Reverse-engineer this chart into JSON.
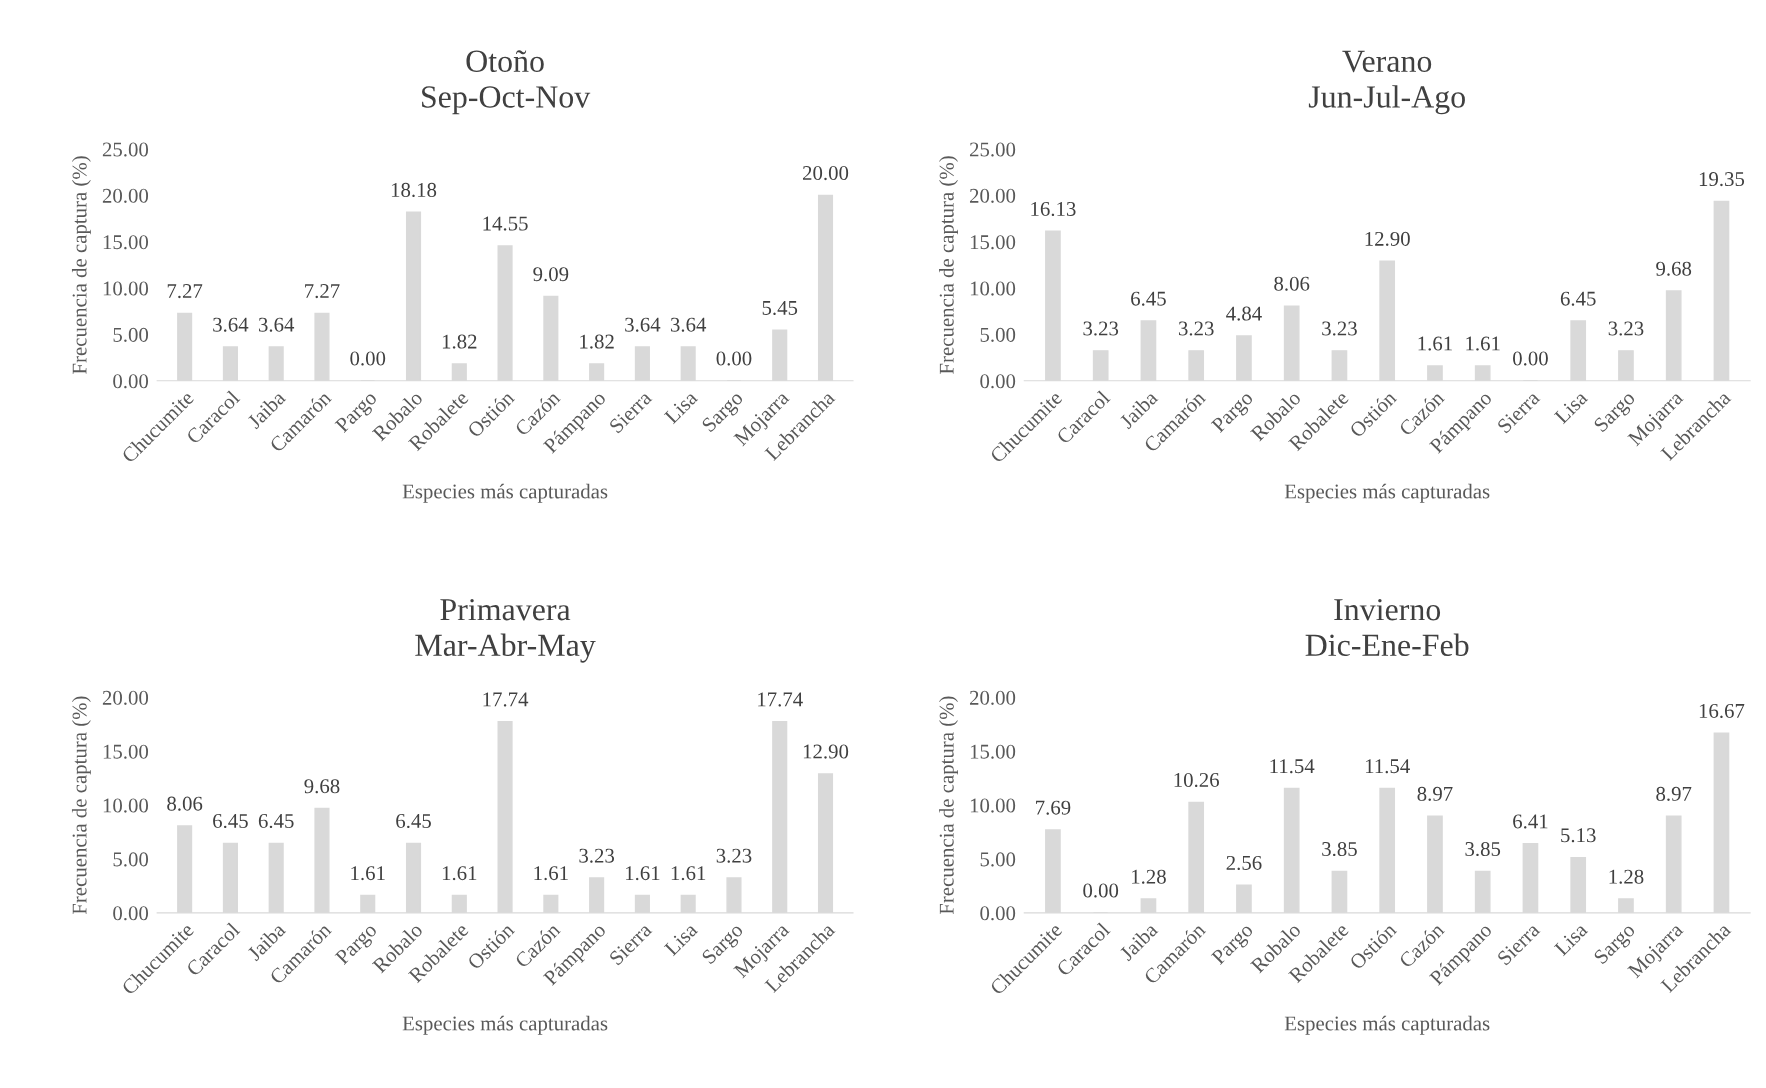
{
  "chart_data": [
    {
      "type": "bar",
      "title": "Otoño",
      "subtitle": "Sep-Oct-Nov",
      "xlabel": "Especies más capturadas",
      "ylabel": "Frecuencia de captura (%)",
      "categories": [
        "Chucumite",
        "Caracol",
        "Jaiba",
        "Camarón",
        "Pargo",
        "Robalo",
        "Robalete",
        "Ostión",
        "Cazón",
        "Pámpano",
        "Sierra",
        "Lisa",
        "Sargo",
        "Mojarra",
        "Lebrancha"
      ],
      "color": "#d9d9d9",
      "values": [
        7.27,
        3.64,
        3.64,
        7.27,
        0.0,
        18.18,
        1.82,
        14.55,
        9.09,
        1.82,
        3.64,
        3.64,
        0.0,
        5.45,
        20.0
      ],
      "value_labels": [
        "7.27",
        "3.64",
        "3.64",
        "7.27",
        "0.00",
        "18.18",
        "1.82",
        "14.55",
        "9.09",
        "1.82",
        "3.64",
        "3.64",
        "0.00",
        "5.45",
        "20.00"
      ],
      "ylim": [
        0,
        25
      ],
      "yticks": [
        {
          "value": 0,
          "label": "0.00"
        },
        {
          "value": 5,
          "label": "5.00"
        },
        {
          "value": 10,
          "label": "10.00"
        },
        {
          "value": 15,
          "label": "15.00"
        },
        {
          "value": 20,
          "label": "20.00"
        },
        {
          "value": 25,
          "label": "25.00"
        }
      ],
      "grid": false,
      "legend": false
    },
    {
      "type": "bar",
      "title": "Verano",
      "subtitle": "Jun-Jul-Ago",
      "xlabel": "Especies más capturadas",
      "ylabel": "Frecuencia de captura (%)",
      "categories": [
        "Chucumite",
        "Caracol",
        "Jaiba",
        "Camarón",
        "Pargo",
        "Robalo",
        "Robalete",
        "Ostión",
        "Cazón",
        "Pámpano",
        "Sierra",
        "Lisa",
        "Sargo",
        "Mojarra",
        "Lebrancha"
      ],
      "color": "#d9d9d9",
      "values": [
        16.13,
        3.23,
        6.45,
        3.23,
        4.84,
        8.06,
        3.23,
        12.9,
        1.61,
        1.61,
        0.0,
        6.45,
        3.23,
        9.68,
        19.35
      ],
      "value_labels": [
        "16.13",
        "3.23",
        "6.45",
        "3.23",
        "4.84",
        "8.06",
        "3.23",
        "12.90",
        "1.61",
        "1.61",
        "0.00",
        "6.45",
        "3.23",
        "9.68",
        "19.35"
      ],
      "ylim": [
        0,
        25
      ],
      "yticks": [
        {
          "value": 0,
          "label": "0.00"
        },
        {
          "value": 5,
          "label": "5.00"
        },
        {
          "value": 10,
          "label": "10.00"
        },
        {
          "value": 15,
          "label": "15.00"
        },
        {
          "value": 20,
          "label": "20.00"
        },
        {
          "value": 25,
          "label": "25.00"
        }
      ],
      "grid": false,
      "legend": false
    },
    {
      "type": "bar",
      "title": "Primavera",
      "subtitle": "Mar-Abr-May",
      "xlabel": "Especies más capturadas",
      "ylabel": "Frecuencia de captura (%)",
      "categories": [
        "Chucumite",
        "Caracol",
        "Jaiba",
        "Camarón",
        "Pargo",
        "Robalo",
        "Robalete",
        "Ostión",
        "Cazón",
        "Pámpano",
        "Sierra",
        "Lisa",
        "Sargo",
        "Mojarra",
        "Lebrancha"
      ],
      "color": "#d9d9d9",
      "values": [
        8.06,
        6.45,
        6.45,
        9.68,
        1.61,
        6.45,
        1.61,
        17.74,
        1.61,
        3.23,
        1.61,
        1.61,
        3.23,
        17.74,
        12.9
      ],
      "value_labels": [
        "8.06",
        "6.45",
        "6.45",
        "9.68",
        "1.61",
        "6.45",
        "1.61",
        "17.74",
        "1.61",
        "3.23",
        "1.61",
        "1.61",
        "3.23",
        "17.74",
        "12.90"
      ],
      "ylim": [
        0,
        20
      ],
      "yticks": [
        {
          "value": 0,
          "label": "0.00"
        },
        {
          "value": 5,
          "label": "5.00"
        },
        {
          "value": 10,
          "label": "10.00"
        },
        {
          "value": 15,
          "label": "15.00"
        },
        {
          "value": 20,
          "label": "20.00"
        }
      ],
      "grid": false,
      "legend": false
    },
    {
      "type": "bar",
      "title": "Invierno",
      "subtitle": "Dic-Ene-Feb",
      "xlabel": "Especies más capturadas",
      "ylabel": "Frecuencia de captura (%)",
      "categories": [
        "Chucumite",
        "Caracol",
        "Jaiba",
        "Camarón",
        "Pargo",
        "Robalo",
        "Robalete",
        "Ostión",
        "Cazón",
        "Pámpano",
        "Sierra",
        "Lisa",
        "Sargo",
        "Mojarra",
        "Lebrancha"
      ],
      "color": "#d9d9d9",
      "values": [
        7.69,
        0.0,
        1.28,
        10.26,
        2.56,
        11.54,
        3.85,
        11.54,
        8.97,
        3.85,
        6.41,
        5.13,
        1.28,
        8.97,
        16.67
      ],
      "value_labels": [
        "7.69",
        "0.00",
        "1.28",
        "10.26",
        "2.56",
        "11.54",
        "3.85",
        "11.54",
        "8.97",
        "3.85",
        "6.41",
        "5.13",
        "1.28",
        "8.97",
        "16.67"
      ],
      "ylim": [
        0,
        20
      ],
      "yticks": [
        {
          "value": 0,
          "label": "0.00"
        },
        {
          "value": 5,
          "label": "5.00"
        },
        {
          "value": 10,
          "label": "10.00"
        },
        {
          "value": 15,
          "label": "15.00"
        },
        {
          "value": 20,
          "label": "20.00"
        }
      ],
      "grid": false,
      "legend": false
    }
  ]
}
